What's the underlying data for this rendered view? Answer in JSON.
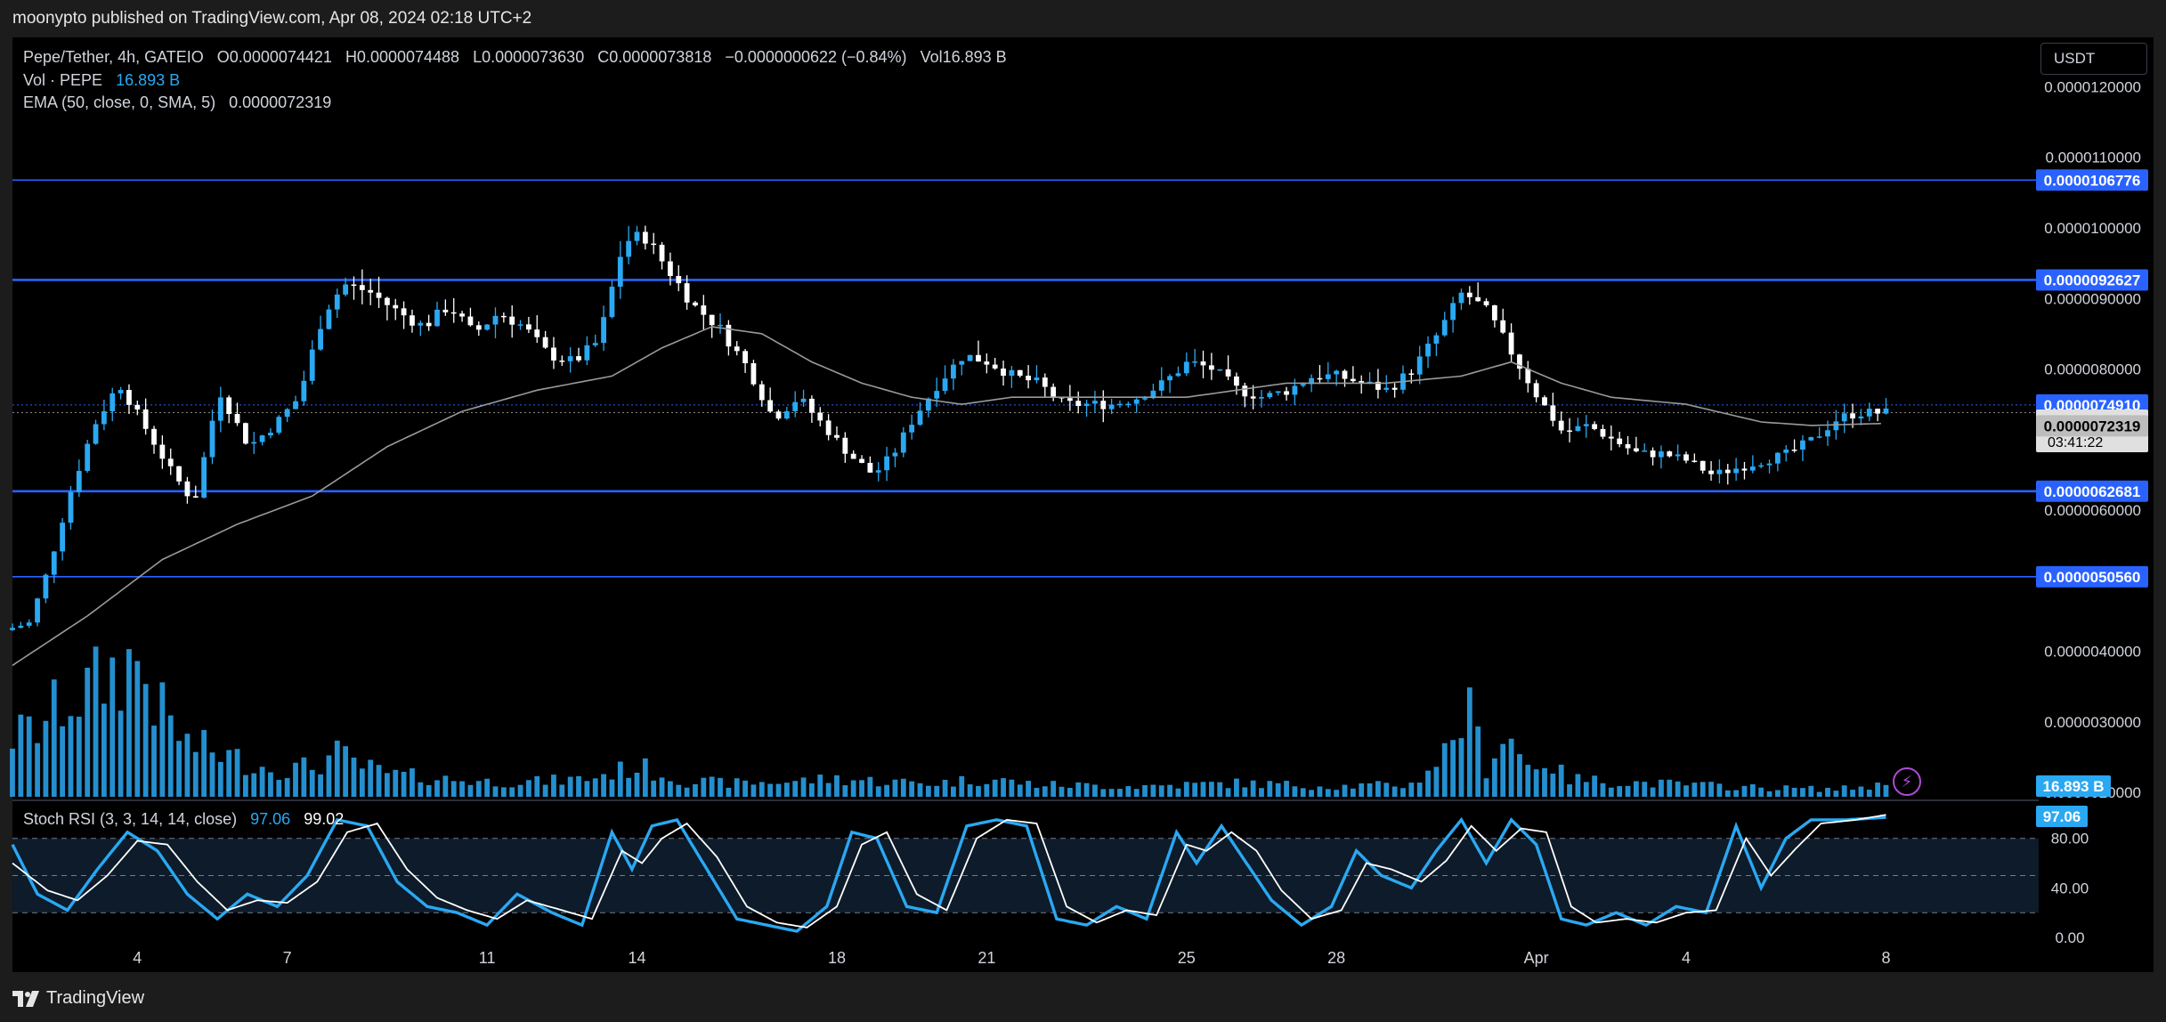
{
  "header": {
    "published": "moonypto published on TradingView.com, Apr 08, 2024 02:18 UTC+2"
  },
  "legend": {
    "symbol": "Pepe/Tether, 4h, GATEIO",
    "o": "O0.0000074421",
    "h": "H0.0000074488",
    "l": "L0.0000073630",
    "c": "C0.0000073818",
    "change": "−0.0000000622 (−0.84%)",
    "vol": "Vol16.893 B",
    "vol_label": "Vol · PEPE",
    "vol_value": "16.893 B",
    "ema_label": "EMA (50, close, 0, SMA, 5)",
    "ema_value": "0.0000072319",
    "stoch_label": "Stoch RSI (3, 3, 14, 14, close)",
    "stoch_k": "97.06",
    "stoch_d": "99.02"
  },
  "toolbar": {
    "currency": "USDT"
  },
  "footer": {
    "brand": "TradingView"
  },
  "colors": {
    "up": "#2aa8f2",
    "down": "#ffffff",
    "hline": "#2962ff",
    "ema": "#9a9a9a",
    "background": "#000000"
  },
  "chart_data": {
    "type": "candlestick",
    "ylim": [
      1.9e-06,
      1.27e-05
    ],
    "y_ticks": [
      "0.0000120000",
      "0.0000110000",
      "0.0000100000",
      "0.0000090000",
      "0.0000080000",
      "0.0000060000",
      "0.0000040000",
      "0.0000030000",
      "0.0000020000"
    ],
    "x_labels": [
      {
        "label": "4",
        "day": 4
      },
      {
        "label": "7",
        "day": 7
      },
      {
        "label": "11",
        "day": 11
      },
      {
        "label": "14",
        "day": 14
      },
      {
        "label": "18",
        "day": 18
      },
      {
        "label": "21",
        "day": 21
      },
      {
        "label": "25",
        "day": 25
      },
      {
        "label": "28",
        "day": 28
      },
      {
        "label": "Apr",
        "day": 32
      },
      {
        "label": "4",
        "day": 35
      },
      {
        "label": "8",
        "day": 39
      }
    ],
    "x_range_days": [
      1.5,
      41.7
    ],
    "horizontal_lines": [
      {
        "label": "0.0000106776",
        "value": 1.06776e-05
      },
      {
        "label": "0.0000092627",
        "value": 9.2627e-06
      },
      {
        "label": "0.0000062681",
        "value": 6.2681e-06
      },
      {
        "label": "0.0000050560",
        "value": 5.056e-06
      }
    ],
    "price_labels": {
      "high": "0.0000074910",
      "last": "0.0000073818",
      "countdown": "03:41:22",
      "ema": "0.0000072319",
      "volume": "16.893 B"
    },
    "close_anchors": [
      [
        1.5,
        4.3
      ],
      [
        2.0,
        4.4
      ],
      [
        2.4,
        5.2
      ],
      [
        2.8,
        6.2
      ],
      [
        3.3,
        7.2
      ],
      [
        3.8,
        7.8
      ],
      [
        4.3,
        7.2
      ],
      [
        4.8,
        6.6
      ],
      [
        5.3,
        6.1
      ],
      [
        5.8,
        7.7
      ],
      [
        6.4,
        6.9
      ],
      [
        6.9,
        7.2
      ],
      [
        7.4,
        7.6
      ],
      [
        7.9,
        8.8
      ],
      [
        8.3,
        9.2
      ],
      [
        8.8,
        9.1
      ],
      [
        9.4,
        8.8
      ],
      [
        9.9,
        8.6
      ],
      [
        10.4,
        8.9
      ],
      [
        10.9,
        8.5
      ],
      [
        11.4,
        8.8
      ],
      [
        11.9,
        8.6
      ],
      [
        12.4,
        8.2
      ],
      [
        12.9,
        8.1
      ],
      [
        13.4,
        8.4
      ],
      [
        13.9,
        9.8
      ],
      [
        14.3,
        9.9
      ],
      [
        14.8,
        9.4
      ],
      [
        15.3,
        8.9
      ],
      [
        15.8,
        8.6
      ],
      [
        16.4,
        8.0
      ],
      [
        16.9,
        7.3
      ],
      [
        17.4,
        7.6
      ],
      [
        17.9,
        7.2
      ],
      [
        18.4,
        6.8
      ],
      [
        18.9,
        6.5
      ],
      [
        19.3,
        6.8
      ],
      [
        19.7,
        7.3
      ],
      [
        20.2,
        7.8
      ],
      [
        20.7,
        8.2
      ],
      [
        21.2,
        8.1
      ],
      [
        21.7,
        7.9
      ],
      [
        22.2,
        7.8
      ],
      [
        22.7,
        7.5
      ],
      [
        23.2,
        7.5
      ],
      [
        23.7,
        7.5
      ],
      [
        24.2,
        7.6
      ],
      [
        24.7,
        7.8
      ],
      [
        25.2,
        8.1
      ],
      [
        25.7,
        8.0
      ],
      [
        26.2,
        7.7
      ],
      [
        26.7,
        7.6
      ],
      [
        27.2,
        7.7
      ],
      [
        27.7,
        7.9
      ],
      [
        28.2,
        7.9
      ],
      [
        28.7,
        7.8
      ],
      [
        29.2,
        7.7
      ],
      [
        29.7,
        8.0
      ],
      [
        30.2,
        8.5
      ],
      [
        30.7,
        9.1
      ],
      [
        31.2,
        8.8
      ],
      [
        31.7,
        8.2
      ],
      [
        32.2,
        7.6
      ],
      [
        32.7,
        7.1
      ],
      [
        33.2,
        7.2
      ],
      [
        33.7,
        7.0
      ],
      [
        34.2,
        6.8
      ],
      [
        34.7,
        6.8
      ],
      [
        35.2,
        6.7
      ],
      [
        35.7,
        6.5
      ],
      [
        36.2,
        6.6
      ],
      [
        36.7,
        6.7
      ],
      [
        37.2,
        6.8
      ],
      [
        37.7,
        7.0
      ],
      [
        38.2,
        7.3
      ],
      [
        38.6,
        7.38
      ],
      [
        39.0,
        7.38
      ]
    ],
    "ema_anchors": [
      [
        1.5,
        3.8
      ],
      [
        3.0,
        4.5
      ],
      [
        4.5,
        5.3
      ],
      [
        6.0,
        5.8
      ],
      [
        7.5,
        6.2
      ],
      [
        9.0,
        6.9
      ],
      [
        10.5,
        7.4
      ],
      [
        12.0,
        7.7
      ],
      [
        13.5,
        7.9
      ],
      [
        14.5,
        8.3
      ],
      [
        15.5,
        8.6
      ],
      [
        16.5,
        8.5
      ],
      [
        17.5,
        8.1
      ],
      [
        18.5,
        7.8
      ],
      [
        19.5,
        7.6
      ],
      [
        20.5,
        7.5
      ],
      [
        21.5,
        7.6
      ],
      [
        23.0,
        7.6
      ],
      [
        25.0,
        7.6
      ],
      [
        27.0,
        7.8
      ],
      [
        29.0,
        7.8
      ],
      [
        30.5,
        7.9
      ],
      [
        31.5,
        8.1
      ],
      [
        32.5,
        7.8
      ],
      [
        33.5,
        7.6
      ],
      [
        35.0,
        7.5
      ],
      [
        36.5,
        7.25
      ],
      [
        37.5,
        7.2
      ],
      [
        39.0,
        7.23
      ]
    ],
    "stoch_rsi": {
      "ylim": [
        -5,
        110
      ],
      "band_lines": [
        80,
        50,
        20
      ],
      "y_ticks": [
        "80.00",
        "40.00",
        "0.00"
      ],
      "k_label": "97.06",
      "k_anchors": [
        [
          1.5,
          75
        ],
        [
          2.0,
          35
        ],
        [
          2.6,
          22
        ],
        [
          3.2,
          55
        ],
        [
          3.8,
          85
        ],
        [
          4.4,
          70
        ],
        [
          5.0,
          35
        ],
        [
          5.6,
          15
        ],
        [
          6.2,
          35
        ],
        [
          6.8,
          25
        ],
        [
          7.4,
          50
        ],
        [
          8.0,
          95
        ],
        [
          8.6,
          90
        ],
        [
          9.2,
          45
        ],
        [
          9.8,
          25
        ],
        [
          10.4,
          20
        ],
        [
          11.0,
          10
        ],
        [
          11.6,
          35
        ],
        [
          12.3,
          20
        ],
        [
          12.9,
          10
        ],
        [
          13.5,
          85
        ],
        [
          13.9,
          55
        ],
        [
          14.3,
          90
        ],
        [
          14.8,
          95
        ],
        [
          15.4,
          55
        ],
        [
          16.0,
          15
        ],
        [
          16.6,
          10
        ],
        [
          17.2,
          5
        ],
        [
          17.8,
          25
        ],
        [
          18.3,
          85
        ],
        [
          18.8,
          80
        ],
        [
          19.4,
          25
        ],
        [
          20.0,
          20
        ],
        [
          20.6,
          90
        ],
        [
          21.2,
          95
        ],
        [
          21.8,
          90
        ],
        [
          22.4,
          15
        ],
        [
          23.0,
          10
        ],
        [
          23.6,
          25
        ],
        [
          24.2,
          15
        ],
        [
          24.8,
          85
        ],
        [
          25.2,
          60
        ],
        [
          25.7,
          90
        ],
        [
          26.2,
          60
        ],
        [
          26.7,
          30
        ],
        [
          27.3,
          10
        ],
        [
          27.9,
          25
        ],
        [
          28.4,
          70
        ],
        [
          28.9,
          50
        ],
        [
          29.5,
          40
        ],
        [
          30.0,
          70
        ],
        [
          30.5,
          95
        ],
        [
          31.0,
          60
        ],
        [
          31.5,
          95
        ],
        [
          32.0,
          75
        ],
        [
          32.5,
          15
        ],
        [
          33.0,
          10
        ],
        [
          33.6,
          20
        ],
        [
          34.2,
          10
        ],
        [
          34.8,
          25
        ],
        [
          35.4,
          20
        ],
        [
          36.0,
          90
        ],
        [
          36.5,
          40
        ],
        [
          37.0,
          80
        ],
        [
          37.5,
          95
        ],
        [
          38.2,
          95
        ],
        [
          39.0,
          97
        ]
      ],
      "d_anchors": [
        [
          1.5,
          60
        ],
        [
          2.2,
          38
        ],
        [
          2.8,
          30
        ],
        [
          3.4,
          50
        ],
        [
          4.0,
          78
        ],
        [
          4.6,
          75
        ],
        [
          5.2,
          45
        ],
        [
          5.8,
          22
        ],
        [
          6.4,
          30
        ],
        [
          7.0,
          28
        ],
        [
          7.6,
          45
        ],
        [
          8.2,
          85
        ],
        [
          8.8,
          92
        ],
        [
          9.4,
          55
        ],
        [
          10.0,
          32
        ],
        [
          10.6,
          22
        ],
        [
          11.2,
          15
        ],
        [
          11.8,
          30
        ],
        [
          12.5,
          22
        ],
        [
          13.1,
          15
        ],
        [
          13.7,
          70
        ],
        [
          14.1,
          60
        ],
        [
          14.5,
          80
        ],
        [
          15.0,
          92
        ],
        [
          15.6,
          65
        ],
        [
          16.2,
          25
        ],
        [
          16.8,
          12
        ],
        [
          17.4,
          8
        ],
        [
          18.0,
          25
        ],
        [
          18.5,
          75
        ],
        [
          19.0,
          85
        ],
        [
          19.6,
          35
        ],
        [
          20.2,
          22
        ],
        [
          20.8,
          80
        ],
        [
          21.4,
          95
        ],
        [
          22.0,
          92
        ],
        [
          22.6,
          25
        ],
        [
          23.2,
          12
        ],
        [
          23.8,
          22
        ],
        [
          24.4,
          18
        ],
        [
          25.0,
          75
        ],
        [
          25.4,
          70
        ],
        [
          25.9,
          85
        ],
        [
          26.4,
          70
        ],
        [
          26.9,
          38
        ],
        [
          27.5,
          15
        ],
        [
          28.1,
          22
        ],
        [
          28.6,
          60
        ],
        [
          29.1,
          55
        ],
        [
          29.7,
          45
        ],
        [
          30.2,
          62
        ],
        [
          30.7,
          90
        ],
        [
          31.2,
          70
        ],
        [
          31.7,
          88
        ],
        [
          32.2,
          85
        ],
        [
          32.7,
          25
        ],
        [
          33.2,
          12
        ],
        [
          33.8,
          15
        ],
        [
          34.4,
          12
        ],
        [
          35.0,
          20
        ],
        [
          35.6,
          22
        ],
        [
          36.2,
          80
        ],
        [
          36.7,
          50
        ],
        [
          37.2,
          72
        ],
        [
          37.7,
          92
        ],
        [
          38.4,
          95
        ],
        [
          39.0,
          99
        ]
      ]
    },
    "volume": {
      "scale_max": 1.0,
      "label": "16.893 B",
      "anchors": [
        [
          1.5,
          0.4
        ],
        [
          2.0,
          0.45
        ],
        [
          2.5,
          0.62
        ],
        [
          3.0,
          0.7
        ],
        [
          3.5,
          0.82
        ],
        [
          4.0,
          0.9
        ],
        [
          4.5,
          0.55
        ],
        [
          5.0,
          0.35
        ],
        [
          5.5,
          0.3
        ],
        [
          6.0,
          0.25
        ],
        [
          6.5,
          0.2
        ],
        [
          7.0,
          0.18
        ],
        [
          7.5,
          0.2
        ],
        [
          8.0,
          0.28
        ],
        [
          8.5,
          0.2
        ],
        [
          9.0,
          0.15
        ],
        [
          10.0,
          0.12
        ],
        [
          11.0,
          0.1
        ],
        [
          12.0,
          0.1
        ],
        [
          13.0,
          0.12
        ],
        [
          14.0,
          0.2
        ],
        [
          14.5,
          0.15
        ],
        [
          15.0,
          0.1
        ],
        [
          16.0,
          0.09
        ],
        [
          17.0,
          0.1
        ],
        [
          18.0,
          0.12
        ],
        [
          19.0,
          0.1
        ],
        [
          20.0,
          0.09
        ],
        [
          21.0,
          0.12
        ],
        [
          22.0,
          0.08
        ],
        [
          24.0,
          0.07
        ],
        [
          26.0,
          0.09
        ],
        [
          28.0,
          0.07
        ],
        [
          29.5,
          0.08
        ],
        [
          30.2,
          0.3
        ],
        [
          30.6,
          0.6
        ],
        [
          31.0,
          0.2
        ],
        [
          31.4,
          0.45
        ],
        [
          31.8,
          0.2
        ],
        [
          32.2,
          0.25
        ],
        [
          32.6,
          0.12
        ],
        [
          33.5,
          0.1
        ],
        [
          35.0,
          0.08
        ],
        [
          36.5,
          0.06
        ],
        [
          38.0,
          0.05
        ],
        [
          39.0,
          0.08
        ]
      ]
    }
  }
}
